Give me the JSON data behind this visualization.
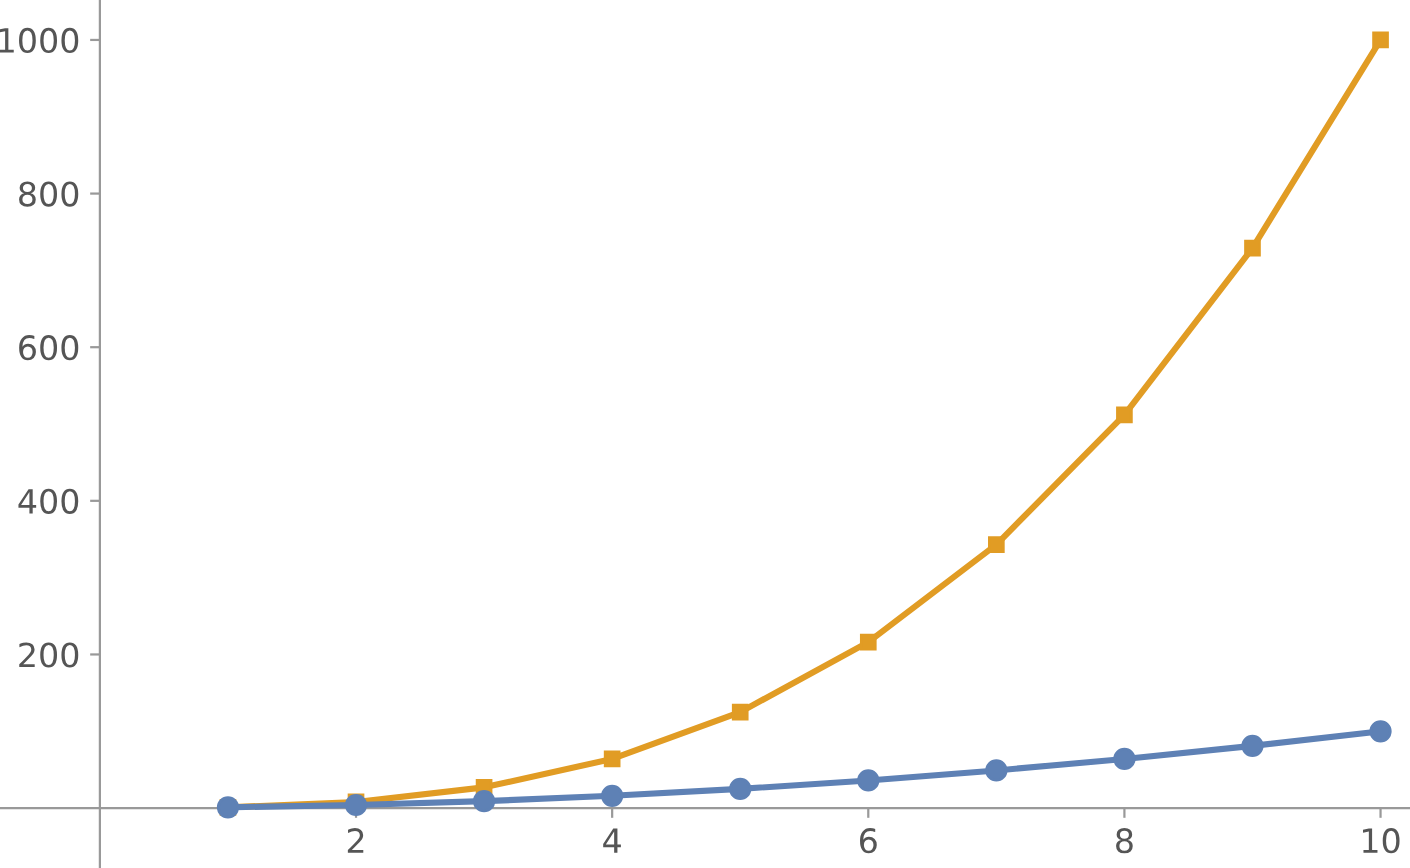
{
  "chart_data": {
    "type": "line",
    "x": [
      1,
      2,
      3,
      4,
      5,
      6,
      7,
      8,
      9,
      10
    ],
    "series": [
      {
        "color": "#5e81b5",
        "marker": "circle",
        "values": [
          1,
          4,
          9,
          16,
          25,
          36,
          49,
          64,
          81,
          100
        ]
      },
      {
        "color": "#e19c24",
        "marker": "square",
        "values": [
          1,
          8,
          27,
          64,
          125,
          216,
          343,
          512,
          729,
          1000
        ]
      }
    ],
    "xlim": [
      -0.78,
      10.23
    ],
    "ylim": [
      -78,
      1052
    ],
    "xticks": [
      2,
      4,
      6,
      8,
      10
    ],
    "yticks": [
      200,
      400,
      600,
      800,
      1000
    ],
    "grid": false,
    "legend": false,
    "line_style": "solid"
  }
}
